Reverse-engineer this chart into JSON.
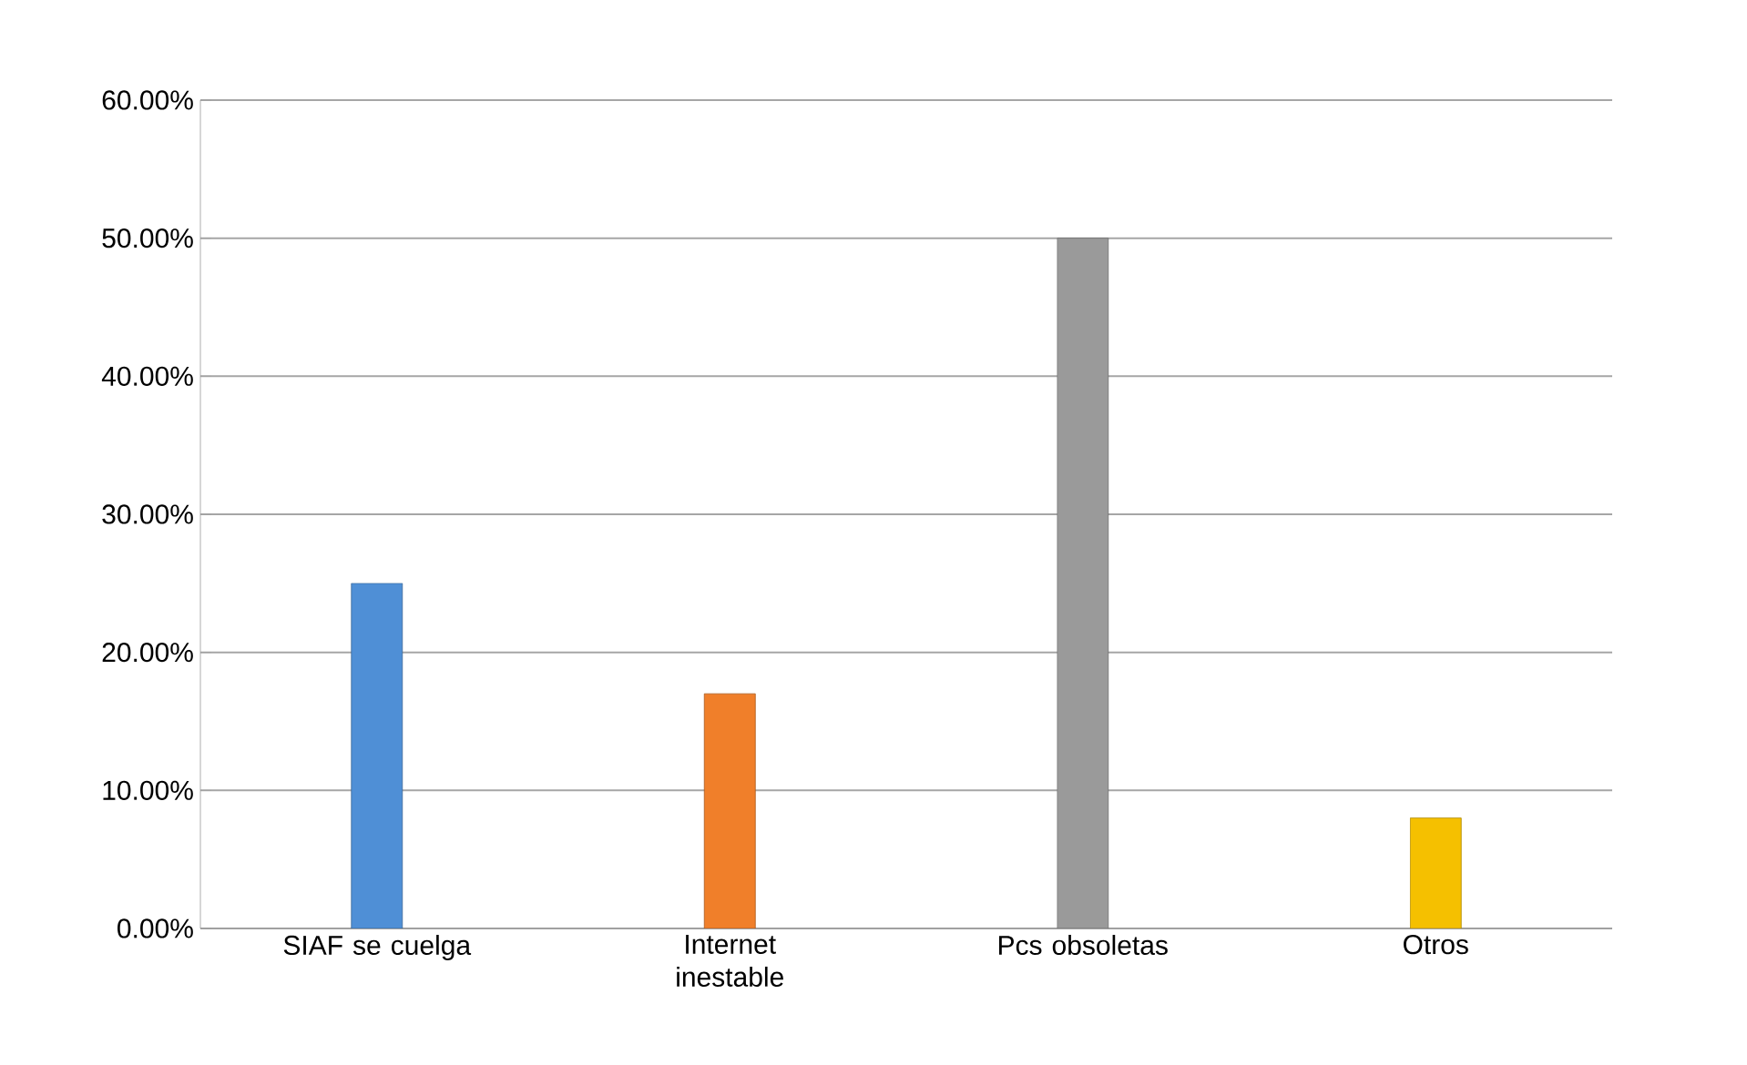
{
  "chart_data": {
    "type": "bar",
    "categories": [
      "SIAF se cuelga",
      "Internet inestable",
      "Pcs obsoletas",
      "Otros"
    ],
    "values": [
      25,
      17,
      50,
      8
    ],
    "colors": [
      "#4f8fd6",
      "#f07f2a",
      "#9a9a9a",
      "#f5c000"
    ],
    "ylim": [
      0,
      60
    ],
    "yticks": [
      {
        "value": 0,
        "label": "0.00%"
      },
      {
        "value": 10,
        "label": "10.00%"
      },
      {
        "value": 20,
        "label": "20.00%"
      },
      {
        "value": 30,
        "label": "30.00%"
      },
      {
        "value": 40,
        "label": "40.00%"
      },
      {
        "value": 50,
        "label": "50.00%"
      },
      {
        "value": 60,
        "label": "60.00%"
      }
    ],
    "grid": "y"
  }
}
